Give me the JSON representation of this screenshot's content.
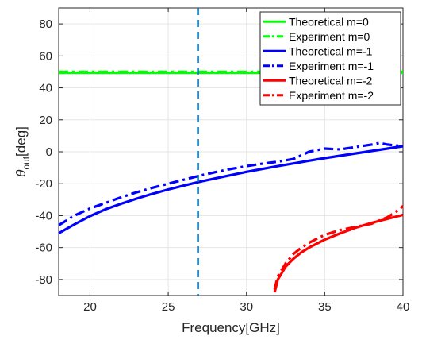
{
  "chart_data": {
    "type": "line",
    "title": "",
    "xlabel": "Frequency[GHz]",
    "ylabel": {
      "symbol": "θ",
      "subscript": "out",
      "unit": "[deg]"
    },
    "xlim": [
      18,
      40
    ],
    "ylim": [
      -90,
      90
    ],
    "xticks": [
      20,
      25,
      30,
      35,
      40
    ],
    "yticks": [
      -80,
      -60,
      -40,
      -20,
      0,
      20,
      40,
      60,
      80
    ],
    "grid": true,
    "legend_position": "top-right",
    "reference_line": {
      "orientation": "vertical",
      "x": 26.9,
      "color": "#0072BD",
      "style": "dashed"
    },
    "series": [
      {
        "name": "Theoretical m=0",
        "color": "#00FF00",
        "style": "solid",
        "x": [
          18,
          40
        ],
        "y": [
          49.5,
          49.5
        ]
      },
      {
        "name": "Experiment m=0",
        "color": "#00FF00",
        "style": "dashdot",
        "x": [
          18,
          40
        ],
        "y": [
          50,
          50
        ]
      },
      {
        "name": "Theoretical m=-1",
        "color": "#0000FF",
        "style": "solid",
        "x": [
          18,
          19,
          20,
          21,
          22,
          23,
          24,
          25,
          26,
          27,
          28,
          29,
          30,
          31,
          32,
          33,
          34,
          35,
          36,
          37,
          38,
          39,
          40
        ],
        "y": [
          -51,
          -45.5,
          -40.3,
          -36,
          -32.5,
          -29.3,
          -26.3,
          -23.6,
          -21.2,
          -18.8,
          -16.7,
          -14.6,
          -12.6,
          -10.8,
          -9,
          -7.3,
          -5.6,
          -4,
          -2.5,
          -1,
          0.5,
          2,
          3.5
        ]
      },
      {
        "name": "Experiment m=-1",
        "color": "#0000FF",
        "style": "dashdot",
        "x": [
          18,
          19,
          20,
          21,
          22,
          23,
          24,
          25,
          26,
          27,
          28,
          29,
          30,
          31,
          32,
          33,
          34,
          35,
          36,
          37,
          38,
          38.5,
          39,
          40
        ],
        "y": [
          -46,
          -40,
          -35.5,
          -32,
          -28.5,
          -25.3,
          -22.5,
          -20,
          -17.5,
          -15,
          -12.8,
          -10.8,
          -9,
          -7.5,
          -6.2,
          -4.5,
          0,
          2,
          1.5,
          3,
          4.5,
          5.5,
          4.5,
          3.5
        ]
      },
      {
        "name": "Theoretical m=-2",
        "color": "#FF0000",
        "style": "solid",
        "x": [
          31.8,
          32,
          32.5,
          33,
          33.5,
          34,
          35,
          36,
          37,
          38,
          39,
          40
        ],
        "y": [
          -88,
          -80,
          -72,
          -67,
          -63,
          -60,
          -55,
          -51,
          -47.5,
          -44.5,
          -42,
          -39.5
        ]
      },
      {
        "name": "Experiment m=-2",
        "color": "#FF0000",
        "style": "dashdot",
        "x": [
          31.8,
          32,
          32.5,
          33,
          33.5,
          34,
          35,
          36,
          37,
          38,
          38.5,
          39,
          39.5,
          40
        ],
        "y": [
          -86,
          -78,
          -70,
          -64,
          -60,
          -57,
          -52,
          -49,
          -47,
          -45,
          -43,
          -41,
          -38,
          -34
        ]
      }
    ]
  }
}
